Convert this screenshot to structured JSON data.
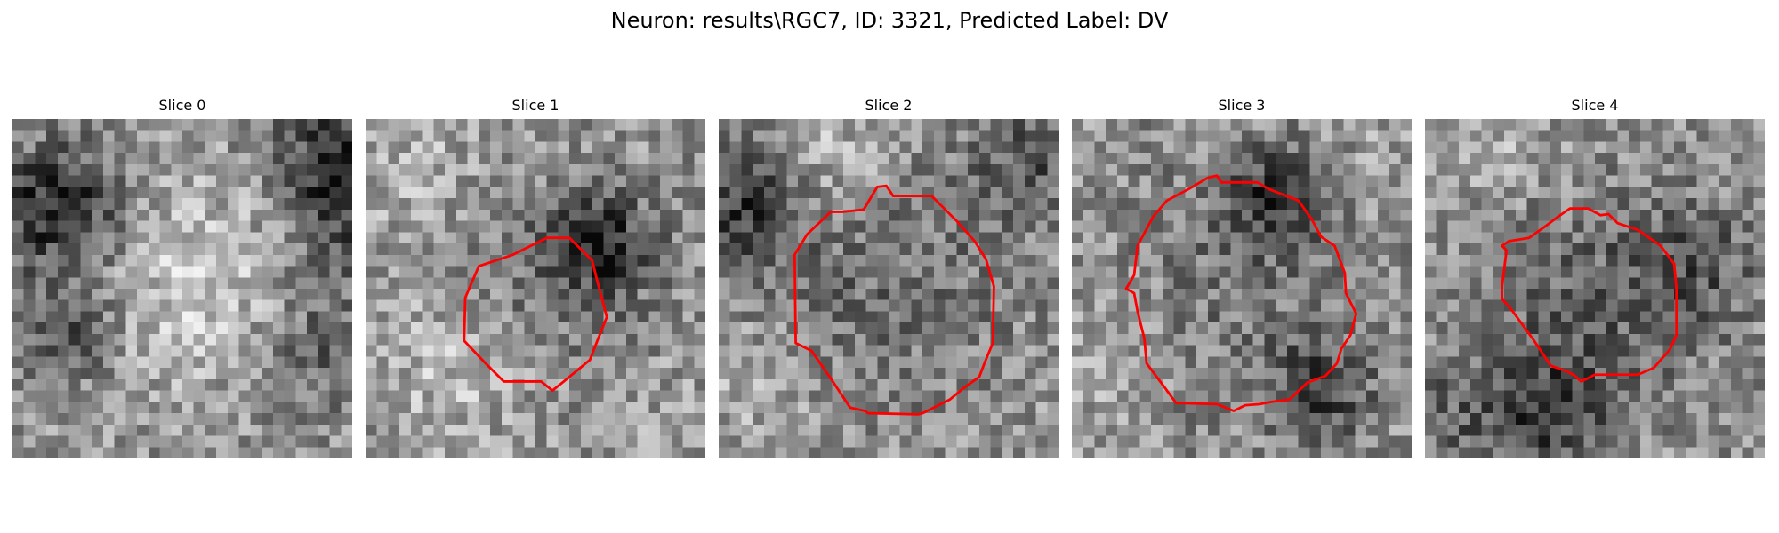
{
  "figure": {
    "title": "Neuron: results\\RGC7, ID: 3321, Predicted Label: DV"
  },
  "contour_color": "#ff0000",
  "slices": [
    {
      "label": "Slice 0",
      "has_contour": false,
      "seed": 11
    },
    {
      "label": "Slice 1",
      "has_contour": true,
      "seed": 23
    },
    {
      "label": "Slice 2",
      "has_contour": true,
      "seed": 37
    },
    {
      "label": "Slice 3",
      "has_contour": true,
      "seed": 41
    },
    {
      "label": "Slice 4",
      "has_contour": true,
      "seed": 53
    }
  ]
}
